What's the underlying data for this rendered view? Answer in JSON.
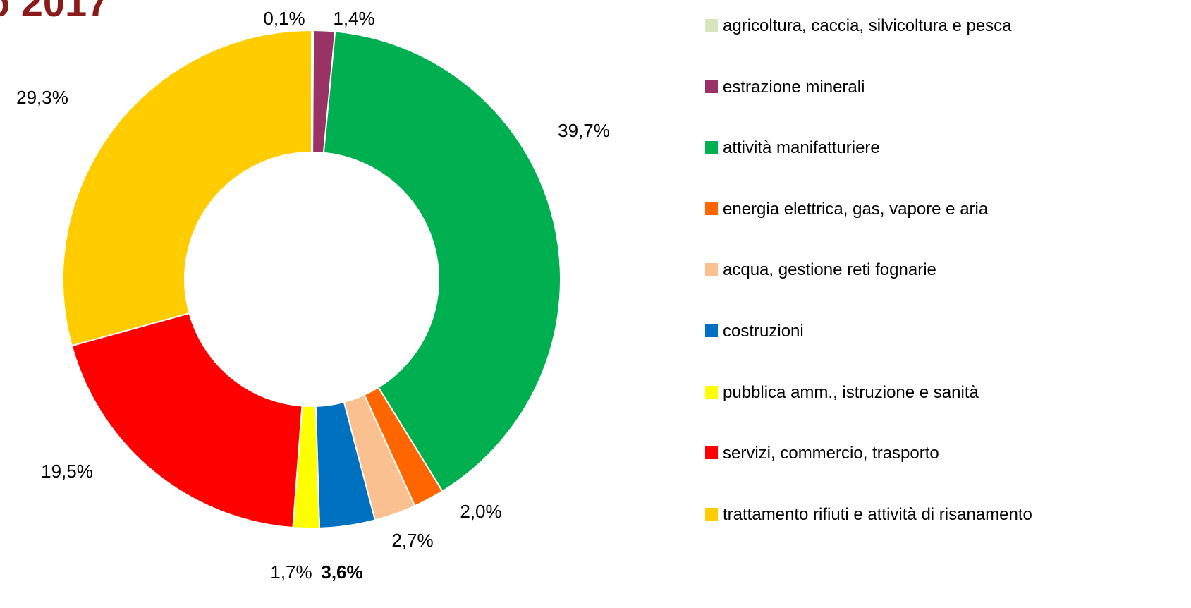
{
  "chart_data": {
    "type": "donut",
    "title": "o 2017",
    "categories": [
      "agricoltura, caccia, silvicoltura e pesca",
      "estrazione minerali",
      "attività manifatturiere",
      "energia elettrica, gas, vapore e aria",
      "acqua, gestione reti fognarie",
      "costruzioni",
      "pubblica amm., istruzione e sanità",
      "servizi, commercio, trasporto",
      "trattamento rifiuti e attività di risanamento"
    ],
    "values": [
      0.1,
      1.4,
      39.7,
      2.0,
      2.7,
      3.6,
      1.7,
      19.5,
      29.3
    ],
    "value_labels": [
      "0,1%",
      "1,4%",
      "39,7%",
      "2,0%",
      "2,7%",
      "3,6%",
      "1,7%",
      "19,5%",
      "29,3%"
    ],
    "value_label_bold": [
      false,
      false,
      false,
      false,
      false,
      true,
      false,
      false,
      false
    ],
    "colors": [
      "#d7e4bd",
      "#993366",
      "#00b050",
      "#ff6600",
      "#fac090",
      "#0070c0",
      "#ffff00",
      "#ff0000",
      "#ffcc00"
    ],
    "legend": "right"
  }
}
